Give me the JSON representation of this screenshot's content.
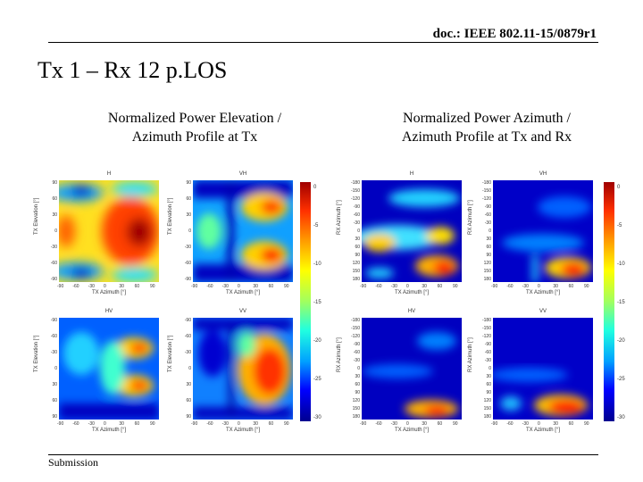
{
  "header": {
    "doc_id": "doc.: IEEE 802.11-15/0879r1"
  },
  "slide": {
    "title": "Tx 1 – Rx 12 p.LOS"
  },
  "captions": {
    "left_line1": "Normalized Power Elevation /",
    "left_line2": "Azimuth Profile at Tx",
    "right_line1": "Normalized Power Azimuth /",
    "right_line2": "Azimuth Profile at Tx and Rx"
  },
  "footer": {
    "label": "Submission"
  },
  "left_plots": {
    "panels": [
      {
        "title": "H",
        "ylabel": "TX Elevation [°]",
        "xlabel": "TX Azimuth [°]"
      },
      {
        "title": "VH",
        "ylabel": "TX Elevation [°]",
        "xlabel": "TX Azimuth [°]"
      },
      {
        "title": "HV",
        "ylabel": "TX Elevation [°]",
        "xlabel": "TX Azimuth [°]"
      },
      {
        "title": "VV",
        "ylabel": "TX Elevation [°]",
        "xlabel": "TX Azimuth [°]"
      }
    ],
    "y_ticks_top": [
      "90",
      "60",
      "30",
      "0",
      "-30",
      "-60",
      "-90"
    ],
    "x_ticks_top": [
      "-90",
      "-60",
      "-30",
      "0",
      "30",
      "60",
      "90"
    ],
    "y_ticks_bottom": [
      "-90",
      "-60",
      "-30",
      "0",
      "30",
      "60",
      "90"
    ],
    "x_ticks_bottom": [
      "-90",
      "-60",
      "-30",
      "0",
      "30",
      "60",
      "90"
    ],
    "colorbar_ticks": [
      "0",
      "-5",
      "-10",
      "-15",
      "-20",
      "-25",
      "-30"
    ]
  },
  "right_plots": {
    "panels": [
      {
        "title": "H",
        "ylabel": "RX Azimuth [°]",
        "xlabel": "TX Azimuth [°]"
      },
      {
        "title": "VH",
        "ylabel": "RX Azimuth [°]",
        "xlabel": "TX Azimuth [°]"
      },
      {
        "title": "HV",
        "ylabel": "RX Azimuth [°]",
        "xlabel": "TX Azimuth [°]"
      },
      {
        "title": "VV",
        "ylabel": "RX Azimuth [°]",
        "xlabel": "TX Azimuth [°]"
      }
    ],
    "y_ticks": [
      "-180",
      "-150",
      "-120",
      "-90",
      "-60",
      "-30",
      "0",
      "30",
      "60",
      "90",
      "120",
      "150",
      "180"
    ],
    "x_ticks": [
      "-90",
      "-60",
      "-30",
      "0",
      "30",
      "60",
      "90"
    ],
    "colorbar_ticks": [
      "0",
      "-5",
      "-10",
      "-15",
      "-20",
      "-25",
      "-30"
    ]
  },
  "colormap": [
    "#00008f",
    "#0000ff",
    "#00a0ff",
    "#20ffe0",
    "#a0ff60",
    "#ffff00",
    "#ffa000",
    "#ff3000",
    "#a00000"
  ]
}
